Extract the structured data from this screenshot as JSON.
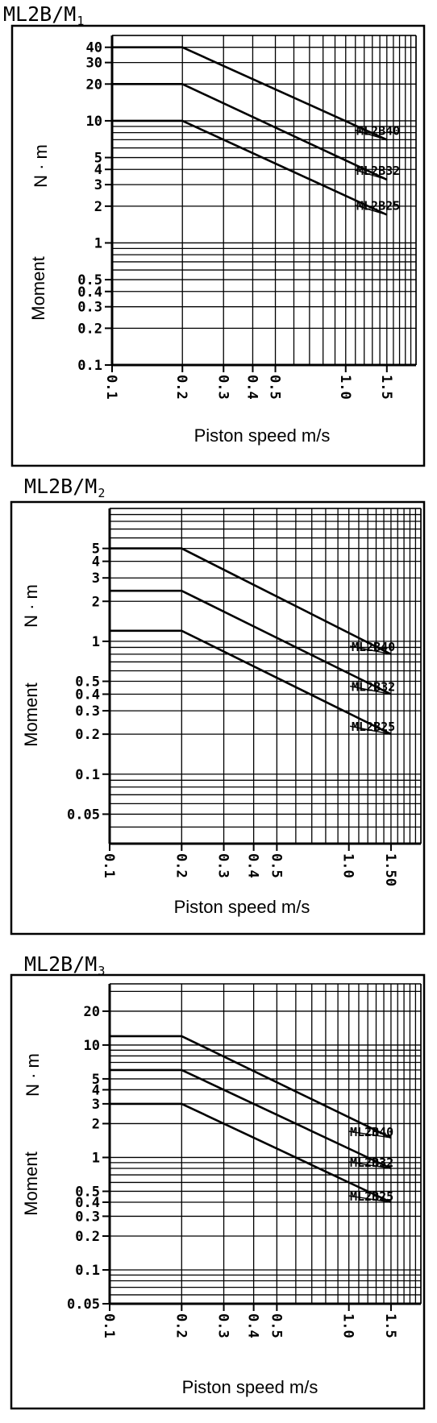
{
  "chart_data": [
    {
      "type": "line",
      "title": "ML2B/M",
      "title_sub": "1",
      "xlabel": "Piston speed m/s",
      "ylabel": "Moment",
      "ylabel_unit": "N · m",
      "x_scale": "log",
      "y_scale": "log",
      "xlim": [
        0.1,
        2.0
      ],
      "ylim": [
        0.1,
        50
      ],
      "x_ticks": [
        {
          "v": 0.1,
          "t": "0.1"
        },
        {
          "v": 0.2,
          "t": "0.2"
        },
        {
          "v": 0.3,
          "t": "0.3"
        },
        {
          "v": 0.4,
          "t": "0.4"
        },
        {
          "v": 0.5,
          "t": "0.5"
        },
        {
          "v": 1.0,
          "t": "1.0"
        },
        {
          "v": 1.5,
          "t": "1.5"
        }
      ],
      "y_ticks": [
        {
          "v": 0.1,
          "t": "0.1"
        },
        {
          "v": 0.2,
          "t": "0.2"
        },
        {
          "v": 0.3,
          "t": "0.3"
        },
        {
          "v": 0.4,
          "t": "0.4"
        },
        {
          "v": 0.5,
          "t": "0.5"
        },
        {
          "v": 1,
          "t": "1"
        },
        {
          "v": 2,
          "t": "2"
        },
        {
          "v": 3,
          "t": "3"
        },
        {
          "v": 4,
          "t": "4"
        },
        {
          "v": 5,
          "t": "5"
        },
        {
          "v": 10,
          "t": "10"
        },
        {
          "v": 20,
          "t": "20"
        },
        {
          "v": 30,
          "t": "30"
        },
        {
          "v": 40,
          "t": "40"
        }
      ],
      "grid": true,
      "series": [
        {
          "name": "ML2B40",
          "x": [
            0.1,
            0.2,
            1.5
          ],
          "y": [
            40,
            40,
            7
          ]
        },
        {
          "name": "ML2B32",
          "x": [
            0.1,
            0.2,
            1.5
          ],
          "y": [
            20,
            20,
            3.3
          ]
        },
        {
          "name": "ML2B25",
          "x": [
            0.1,
            0.2,
            1.5
          ],
          "y": [
            10,
            10,
            1.7
          ]
        }
      ]
    },
    {
      "type": "line",
      "title": "ML2B/M",
      "title_sub": "2",
      "xlabel": "Piston speed m/s",
      "ylabel": "Moment",
      "ylabel_unit": "N · m",
      "x_scale": "log",
      "y_scale": "log",
      "xlim": [
        0.1,
        2.0
      ],
      "ylim": [
        0.03,
        10
      ],
      "x_ticks": [
        {
          "v": 0.1,
          "t": "0.1"
        },
        {
          "v": 0.2,
          "t": "0.2"
        },
        {
          "v": 0.3,
          "t": "0.3"
        },
        {
          "v": 0.4,
          "t": "0.4"
        },
        {
          "v": 0.5,
          "t": "0.5"
        },
        {
          "v": 1.0,
          "t": "1.0"
        },
        {
          "v": 1.5,
          "t": "1.50"
        }
      ],
      "y_ticks": [
        {
          "v": 0.05,
          "t": "0.05"
        },
        {
          "v": 0.1,
          "t": "0.1"
        },
        {
          "v": 0.2,
          "t": "0.2"
        },
        {
          "v": 0.3,
          "t": "0.3"
        },
        {
          "v": 0.4,
          "t": "0.4"
        },
        {
          "v": 0.5,
          "t": "0.5"
        },
        {
          "v": 1,
          "t": "1"
        },
        {
          "v": 2,
          "t": "2"
        },
        {
          "v": 3,
          "t": "3"
        },
        {
          "v": 4,
          "t": "4"
        },
        {
          "v": 5,
          "t": "5"
        }
      ],
      "grid": true,
      "series": [
        {
          "name": "ML2B40",
          "x": [
            0.1,
            0.2,
            1.5
          ],
          "y": [
            5,
            5,
            0.8
          ]
        },
        {
          "name": "ML2B32",
          "x": [
            0.1,
            0.2,
            1.5
          ],
          "y": [
            2.4,
            2.4,
            0.4
          ]
        },
        {
          "name": "ML2B25",
          "x": [
            0.1,
            0.2,
            1.5
          ],
          "y": [
            1.2,
            1.2,
            0.2
          ]
        }
      ]
    },
    {
      "type": "line",
      "title": "ML2B/M",
      "title_sub": "3",
      "xlabel": "Piston speed m/s",
      "ylabel": "Moment",
      "ylabel_unit": "N · m",
      "x_scale": "log",
      "y_scale": "log",
      "xlim": [
        0.1,
        2.0
      ],
      "ylim": [
        0.05,
        35
      ],
      "x_ticks": [
        {
          "v": 0.1,
          "t": "0.1"
        },
        {
          "v": 0.2,
          "t": "0.2"
        },
        {
          "v": 0.3,
          "t": "0.3"
        },
        {
          "v": 0.4,
          "t": "0.4"
        },
        {
          "v": 0.5,
          "t": "0.5"
        },
        {
          "v": 1.0,
          "t": "1.0"
        },
        {
          "v": 1.5,
          "t": "1.5"
        }
      ],
      "y_ticks": [
        {
          "v": 0.05,
          "t": "0.05"
        },
        {
          "v": 0.1,
          "t": "0.1"
        },
        {
          "v": 0.2,
          "t": "0.2"
        },
        {
          "v": 0.3,
          "t": "0.3"
        },
        {
          "v": 0.4,
          "t": "0.4"
        },
        {
          "v": 0.5,
          "t": "0.5"
        },
        {
          "v": 1,
          "t": "1"
        },
        {
          "v": 2,
          "t": "2"
        },
        {
          "v": 3,
          "t": "3"
        },
        {
          "v": 4,
          "t": "4"
        },
        {
          "v": 5,
          "t": "5"
        },
        {
          "v": 10,
          "t": "10"
        },
        {
          "v": 20,
          "t": "20"
        }
      ],
      "grid": true,
      "series": [
        {
          "name": "ML2B40",
          "x": [
            0.1,
            0.2,
            1.5
          ],
          "y": [
            12,
            12,
            1.5
          ]
        },
        {
          "name": "ML2B32",
          "x": [
            0.1,
            0.2,
            1.5
          ],
          "y": [
            6,
            6,
            0.8
          ]
        },
        {
          "name": "ML2B25",
          "x": [
            0.1,
            0.2,
            1.5
          ],
          "y": [
            3,
            3,
            0.4
          ]
        }
      ]
    }
  ]
}
